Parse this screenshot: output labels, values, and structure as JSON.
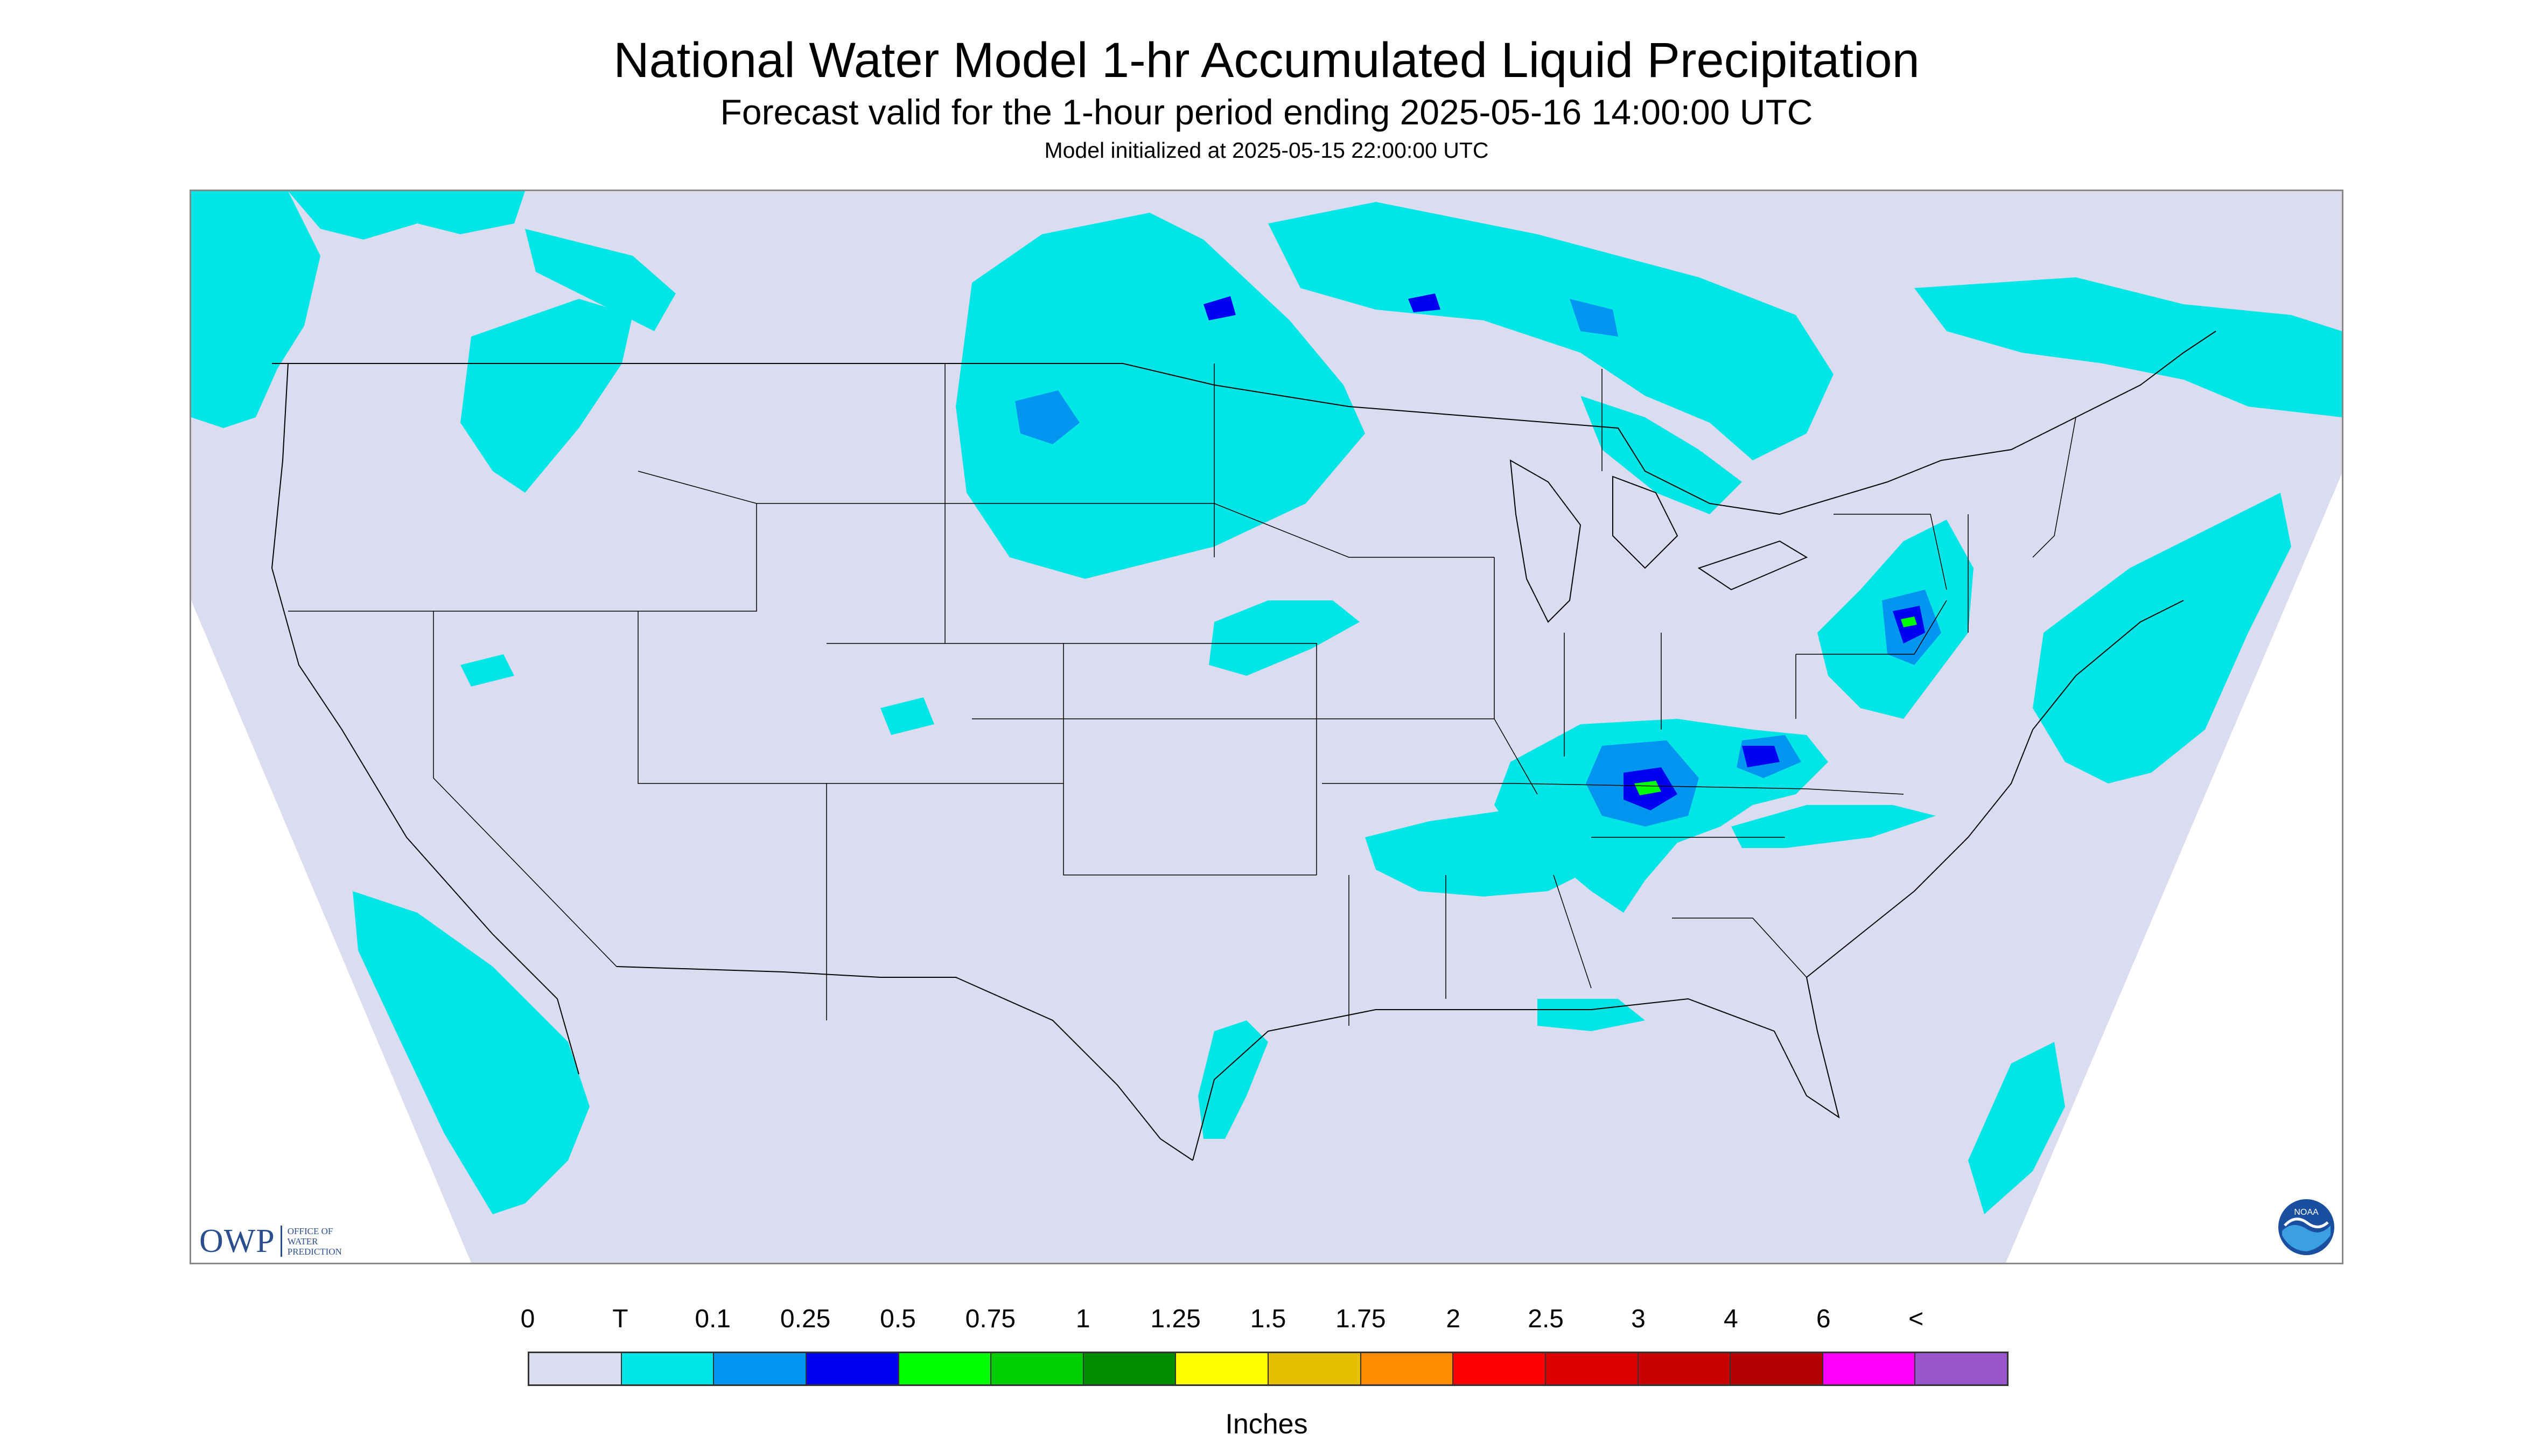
{
  "title": "National Water Model 1-hr Accumulated Liquid Precipitation",
  "subtitle": "Forecast valid for the 1-hour period ending 2025-05-16 14:00:00 UTC",
  "init_line": "Model initialized at 2025-05-15 22:00:00 UTC",
  "legend": {
    "tick_labels": [
      "0",
      "T",
      "0.1",
      "0.25",
      "0.5",
      "0.75",
      "1",
      "1.25",
      "1.5",
      "1.75",
      "2",
      "2.5",
      "3",
      "4",
      "6",
      "<"
    ],
    "colors": [
      "#dcdcf0",
      "#00e6e6",
      "#0096f0",
      "#0000f0",
      "#00ff00",
      "#00cd00",
      "#008b00",
      "#ffff00",
      "#e6be00",
      "#ff8c00",
      "#ff0000",
      "#dc0000",
      "#c80000",
      "#b40000",
      "#ff00ff",
      "#9955cc"
    ],
    "units": "Inches"
  },
  "logos": {
    "owp_mark": "OWP",
    "owp_text": [
      "OFFICE OF",
      "WATER",
      "PREDICTION"
    ],
    "noaa_text": "NOAA"
  },
  "map": {
    "domain_color": "#dcdcf0",
    "trace_color": "#00e6e6",
    "light_color": "#0096f0",
    "moderate_color": "#0000f0",
    "heavy_color": "#00ff00"
  }
}
